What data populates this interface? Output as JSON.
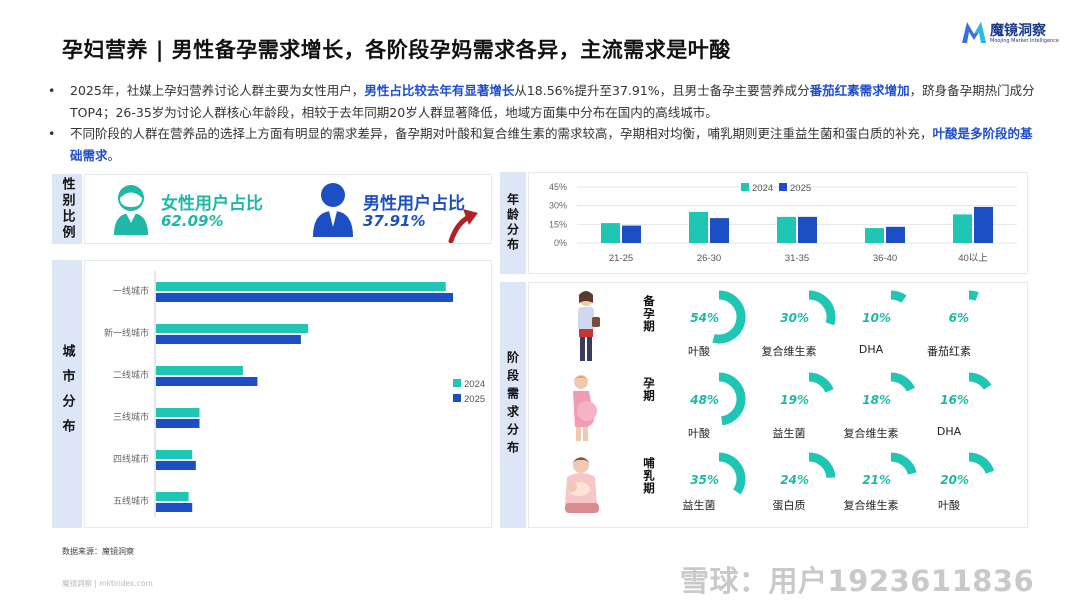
{
  "title": "孕妇营养 | 男性备孕需求增长，各阶段孕妈需求各异，主流需求是叶酸",
  "logo": {
    "name": "魔镜洞察",
    "sub": "Moojing Market Intelligence"
  },
  "bullets": [
    {
      "p1": "2025年，社媒上孕妇营养讨论人群主要为女性用户，",
      "h1": "男性占比较去年有显著增长",
      "p2": "从18.56%提升至37.91%，且男士备孕主要营养成分",
      "h2": "番茄红素需求增加",
      "p3": "，跻身备孕期热门成分TOP4；26-35岁为讨论人群核心年龄段，相较于去年同期20岁人群显著降低，地域方面集中分布在国内的高线城市。"
    },
    {
      "p1": "不同阶段的人群在营养品的选择上方面有明显的需求差异，备孕期对叶酸和复合维生素的需求较高，孕期相对均衡，哺乳期则更注重益生菌和蛋白质的补充，",
      "h1": "叶酸是多阶段的基础需求",
      "p2": "。"
    }
  ],
  "gender": {
    "label": "性别比例",
    "female": {
      "title": "女性用户占比",
      "value": "62.09%",
      "color": "#1fb7a6"
    },
    "male": {
      "title": "男性用户占比",
      "value": "37.91%",
      "color": "#1d4fc4"
    },
    "arrow_color": "#b0222a"
  },
  "age": {
    "label": "年龄分布"
  },
  "city": {
    "label": "城市分布"
  },
  "stage": {
    "label": "阶段需求分布"
  },
  "colors": {
    "y2024": "#1fc6b3",
    "y2025": "#1d4fc4",
    "side_bg": "#dde6f6",
    "ring": "#1fc6b3",
    "accent": "#1f4fcc"
  },
  "chart_data": [
    {
      "type": "bar",
      "title": "年龄分布",
      "categories": [
        "21-25",
        "26-30",
        "31-35",
        "36-40",
        "40以上"
      ],
      "series": [
        {
          "name": "2024",
          "values": [
            16,
            25,
            21,
            12,
            23
          ]
        },
        {
          "name": "2025",
          "values": [
            14,
            20,
            21,
            13,
            29
          ]
        }
      ],
      "y_ticks": [
        "45%",
        "30%",
        "15%",
        "0%"
      ],
      "ylim": [
        0,
        45
      ],
      "legend": "top-left",
      "grid": true
    },
    {
      "type": "bar",
      "orientation": "horizontal",
      "title": "城市分布",
      "categories": [
        "一线城市",
        "新一线城市",
        "二线城市",
        "三线城市",
        "四线城市",
        "五线城市"
      ],
      "series": [
        {
          "name": "2024",
          "values": [
            40,
            21,
            12,
            6,
            5,
            4.5
          ]
        },
        {
          "name": "2025",
          "values": [
            41,
            20,
            14,
            6,
            5.5,
            5
          ]
        }
      ],
      "xlim": [
        0,
        45
      ],
      "legend": "right",
      "grid": false
    },
    {
      "type": "table",
      "title": "阶段需求分布",
      "stages": [
        {
          "name": "备孕期",
          "items": [
            {
              "name": "叶酸",
              "value": 54,
              "label": "54%"
            },
            {
              "name": "复合维生素",
              "value": 30,
              "label": "30%"
            },
            {
              "name": "DHA",
              "value": 10,
              "label": "10%"
            },
            {
              "name": "番茄红素",
              "value": 6,
              "label": "6%"
            }
          ]
        },
        {
          "name": "孕期",
          "items": [
            {
              "name": "叶酸",
              "value": 48,
              "label": "48%"
            },
            {
              "name": "益生菌",
              "value": 19,
              "label": "19%"
            },
            {
              "name": "复合维生素",
              "value": 18,
              "label": "18%"
            },
            {
              "name": "DHA",
              "value": 16,
              "label": "16%"
            }
          ]
        },
        {
          "name": "哺乳期",
          "items": [
            {
              "name": "益生菌",
              "value": 35,
              "label": "35%"
            },
            {
              "name": "蛋白质",
              "value": 24,
              "label": "24%"
            },
            {
              "name": "复合维生素",
              "value": 21,
              "label": "21%"
            },
            {
              "name": "叶酸",
              "value": 20,
              "label": "20%"
            }
          ]
        }
      ]
    }
  ],
  "source": "数据来源：魔镜洞察",
  "footer": "魔镜洞察 | mktindex.com",
  "watermark": "雪球：用户1923611836"
}
